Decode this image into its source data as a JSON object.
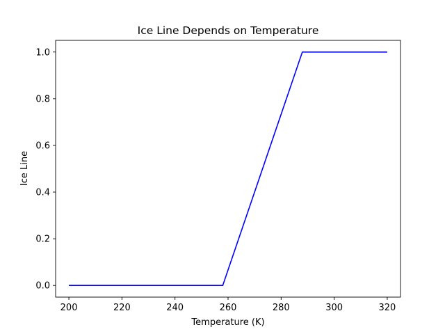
{
  "chart_data": {
    "type": "line",
    "title": "Ice Line Depends on Temperature",
    "xlabel": "Temperature (K)",
    "ylabel": "Ice Line",
    "xlim": [
      195,
      325
    ],
    "ylim": [
      -0.05,
      1.05
    ],
    "x_ticks": [
      200,
      220,
      240,
      260,
      280,
      300,
      320
    ],
    "x_tick_labels": [
      "200",
      "220",
      "240",
      "260",
      "280",
      "300",
      "320"
    ],
    "y_ticks": [
      0.0,
      0.2,
      0.4,
      0.6,
      0.8,
      1.0
    ],
    "y_tick_labels": [
      "0.0",
      "0.2",
      "0.4",
      "0.6",
      "0.8",
      "1.0"
    ],
    "grid": false,
    "series": [
      {
        "color": "#0000ff",
        "x": [
          200,
          258,
          288,
          320
        ],
        "y": [
          0.0,
          0.0,
          1.0,
          1.0
        ]
      }
    ]
  }
}
